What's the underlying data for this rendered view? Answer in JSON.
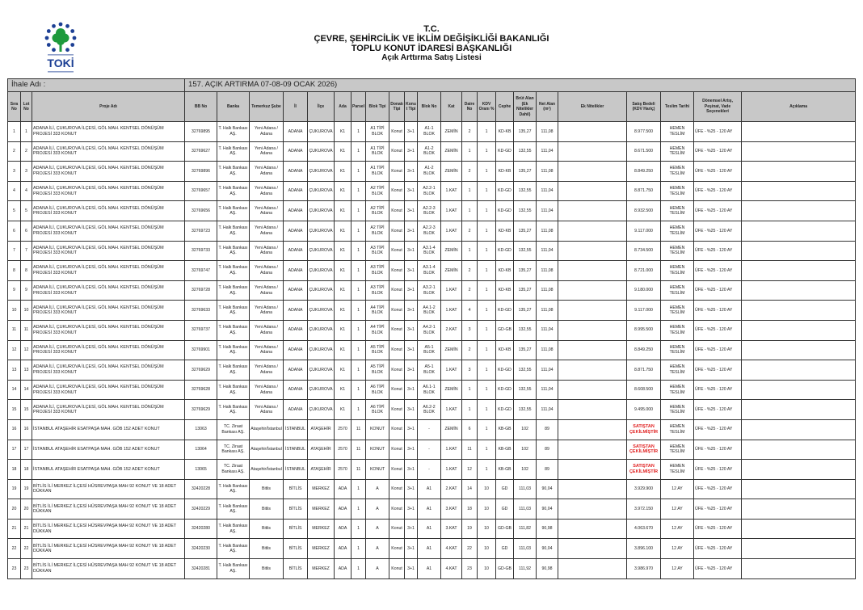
{
  "logo": {
    "text": "TOKİ",
    "colors": {
      "blue": "#1c3f94",
      "green": "#1e9a3c"
    }
  },
  "header": {
    "line1": "T.C.",
    "line2": "ÇEVRE, ŞEHİRCİLİK VE İKLİM DEĞİŞİKLİĞİ BAKANLIĞI",
    "line3": "TOPLU KONUT İDARESİ BAŞKANLIĞI",
    "line4": "Açık Arttırma Satış Listesi"
  },
  "ihale": {
    "label": "İhale Adı :",
    "value": "157. AÇIK ARTIRMA 07-08-09 OCAK 2026)"
  },
  "columns": [
    "Sıra No",
    "Lot No",
    "Proje Adı",
    "BB No",
    "Banka",
    "Temerkuz Şube",
    "İl",
    "İlçe",
    "Ada",
    "Parsel",
    "Blok Tipi",
    "Donatı Tipi",
    "Konut Tipi",
    "Blok No",
    "Kat",
    "Daire No",
    "KDV Oranı %",
    "Cephe",
    "Brüt Alan (Ek Nitelikler Dahil)",
    "Net Alan (m²)",
    "Ek Nitelikler",
    "Satış Bedeli (KDV Hariç)",
    "Teslim Tarihi",
    "Dönemsel Artış, Peşinat, Vade Seçenekleri",
    "Açıklama"
  ],
  "colors": {
    "header_bg": "#c8c8c8",
    "withdrawn": "#e02020"
  },
  "rows": [
    [
      "1",
      "1",
      "ADANA İLİ, ÇUKUROVA İLÇESİ, GÖL MAH. KENTSEL DÖNÜŞÜM PROJESİ 333 KONUT",
      "32769895",
      "T. Halk Bankası AŞ.",
      "Yeni Adana / Adana",
      "ADANA",
      "ÇUKUROVA",
      "K1",
      "1",
      "A1 TİPİ BLOK",
      "Konut",
      "3+1",
      "A1-1 BLOK",
      "ZEMİN",
      "2",
      "1",
      "KD-KB",
      "135,27",
      "111,08",
      "",
      "8.977.500",
      "HEMEN TESLİM",
      "ÜFE - %25 - 120 AY",
      ""
    ],
    [
      "2",
      "2",
      "ADANA İLİ, ÇUKUROVA İLÇESİ, GÖL MAH. KENTSEL DÖNÜŞÜM PROJESİ 333 KONUT",
      "32769627",
      "T. Halk Bankası AŞ.",
      "Yeni Adana / Adana",
      "ADANA",
      "ÇUKUROVA",
      "K1",
      "1",
      "A1 TİPİ BLOK",
      "Konut",
      "3+1",
      "A1-2 BLOK",
      "ZEMİN",
      "1",
      "1",
      "KD-GD",
      "132,55",
      "111,04",
      "",
      "8.671.500",
      "HEMEN TESLİM",
      "ÜFE - %25 - 120 AY",
      ""
    ],
    [
      "3",
      "3",
      "ADANA İLİ, ÇUKUROVA İLÇESİ, GÖL MAH. KENTSEL DÖNÜŞÜM PROJESİ 333 KONUT",
      "32769896",
      "T. Halk Bankası AŞ.",
      "Yeni Adana / Adana",
      "ADANA",
      "ÇUKUROVA",
      "K1",
      "1",
      "A1 TİPİ BLOK",
      "Konut",
      "3+1",
      "A1-2 BLOK",
      "ZEMİN",
      "2",
      "1",
      "KD-KB",
      "135,27",
      "111,08",
      "",
      "8.849.250",
      "HEMEN TESLİM",
      "ÜFE - %25 - 120 AY",
      ""
    ],
    [
      "4",
      "4",
      "ADANA İLİ, ÇUKUROVA İLÇESİ, GÖL MAH. KENTSEL DÖNÜŞÜM PROJESİ 333 KONUT",
      "32769657",
      "T. Halk Bankası AŞ.",
      "Yeni Adana / Adana",
      "ADANA",
      "ÇUKUROVA",
      "K1",
      "1",
      "A2 TİPİ BLOK",
      "Konut",
      "3+1",
      "A2.2-1 BLOK",
      "1.KAT",
      "1",
      "1",
      "KD-GD",
      "132,55",
      "111,04",
      "",
      "8.871.750",
      "HEMEN TESLİM",
      "ÜFE - %25 - 120 AY",
      ""
    ],
    [
      "5",
      "5",
      "ADANA İLİ, ÇUKUROVA İLÇESİ, GÖL MAH. KENTSEL DÖNÜŞÜM PROJESİ 333 KONUT",
      "32769656",
      "T. Halk Bankası AŞ.",
      "Yeni Adana / Adana",
      "ADANA",
      "ÇUKUROVA",
      "K1",
      "1",
      "A2 TİPİ BLOK",
      "Konut",
      "3+1",
      "A2.2-3 BLOK",
      "1.KAT",
      "1",
      "1",
      "KD-GD",
      "132,55",
      "111,04",
      "",
      "8.932.500",
      "HEMEN TESLİM",
      "ÜFE - %25 - 120 AY",
      ""
    ],
    [
      "6",
      "6",
      "ADANA İLİ, ÇUKUROVA İLÇESİ, GÖL MAH. KENTSEL DÖNÜŞÜM PROJESİ 333 KONUT",
      "32769723",
      "T. Halk Bankası AŞ.",
      "Yeni Adana / Adana",
      "ADANA",
      "ÇUKUROVA",
      "K1",
      "1",
      "A2 TİPİ BLOK",
      "Konut",
      "3+1",
      "A2.2-3 BLOK",
      "1.KAT",
      "2",
      "1",
      "KD-KB",
      "135,27",
      "111,08",
      "",
      "9.117.000",
      "HEMEN TESLİM",
      "ÜFE - %25 - 120 AY",
      ""
    ],
    [
      "7",
      "7",
      "ADANA İLİ, ÇUKUROVA İLÇESİ, GÖL MAH. KENTSEL DÖNÜŞÜM PROJESİ 333 KONUT",
      "32769733",
      "T. Halk Bankası AŞ.",
      "Yeni Adana / Adana",
      "ADANA",
      "ÇUKUROVA",
      "K1",
      "1",
      "A3 TİPİ BLOK",
      "Konut",
      "3+1",
      "A3.1-4 BLOK",
      "ZEMİN",
      "1",
      "1",
      "KD-GD",
      "132,55",
      "111,04",
      "",
      "8.734.500",
      "HEMEN TESLİM",
      "ÜFE - %25 - 120 AY",
      ""
    ],
    [
      "8",
      "8",
      "ADANA İLİ, ÇUKUROVA İLÇESİ, GÖL MAH. KENTSEL DÖNÜŞÜM PROJESİ 333 KONUT",
      "32769747",
      "T. Halk Bankası AŞ.",
      "Yeni Adana / Adana",
      "ADANA",
      "ÇUKUROVA",
      "K1",
      "1",
      "A3 TİPİ BLOK",
      "Konut",
      "3+1",
      "A3.1-4 BLOK",
      "ZEMİN",
      "2",
      "1",
      "KD-KB",
      "135,27",
      "111,08",
      "",
      "8.721.000",
      "HEMEN TESLİM",
      "ÜFE - %25 - 120 AY",
      ""
    ],
    [
      "9",
      "9",
      "ADANA İLİ, ÇUKUROVA İLÇESİ, GÖL MAH. KENTSEL DÖNÜŞÜM PROJESİ 333 KONUT",
      "32769728",
      "T. Halk Bankası AŞ.",
      "Yeni Adana / Adana",
      "ADANA",
      "ÇUKUROVA",
      "K1",
      "1",
      "A3 TİPİ BLOK",
      "Konut",
      "3+1",
      "A3.2-1 BLOK",
      "1.KAT",
      "2",
      "1",
      "KD-KB",
      "135,27",
      "111,08",
      "",
      "9.180.000",
      "HEMEN TESLİM",
      "ÜFE - %25 - 120 AY",
      ""
    ],
    [
      "10",
      "10",
      "ADANA İLİ, ÇUKUROVA İLÇESİ, GÖL MAH. KENTSEL DÖNÜŞÜM PROJESİ 333 KONUT",
      "32769633",
      "T. Halk Bankası AŞ.",
      "Yeni Adana / Adana",
      "ADANA",
      "ÇUKUROVA",
      "K1",
      "1",
      "A4 TİPİ BLOK",
      "Konut",
      "3+1",
      "A4.1-2 BLOK",
      "1.KAT",
      "4",
      "1",
      "KD-GD",
      "135,27",
      "111,08",
      "",
      "9.117.000",
      "HEMEN TESLİM",
      "ÜFE - %25 - 120 AY",
      ""
    ],
    [
      "11",
      "11",
      "ADANA İLİ, ÇUKUROVA İLÇESİ, GÖL MAH. KENTSEL DÖNÜŞÜM PROJESİ 333 KONUT",
      "32769737",
      "T. Halk Bankası AŞ.",
      "Yeni Adana / Adana",
      "ADANA",
      "ÇUKUROVA",
      "K1",
      "1",
      "A4 TİPİ BLOK",
      "Konut",
      "3+1",
      "A4.2-1 BLOK",
      "2.KAT",
      "3",
      "1",
      "GD-GB",
      "132,55",
      "111,04",
      "",
      "8.995.500",
      "HEMEN TESLİM",
      "ÜFE - %25 - 120 AY",
      ""
    ],
    [
      "12",
      "12",
      "ADANA İLİ, ÇUKUROVA İLÇESİ, GÖL MAH. KENTSEL DÖNÜŞÜM PROJESİ 333 KONUT",
      "32769901",
      "T. Halk Bankası AŞ.",
      "Yeni Adana / Adana",
      "ADANA",
      "ÇUKUROVA",
      "K1",
      "1",
      "A5 TİPİ BLOK",
      "Konut",
      "3+1",
      "A5-1 BLOK",
      "ZEMİN",
      "2",
      "1",
      "KD-KB",
      "135,27",
      "111,08",
      "",
      "8.849.250",
      "HEMEN TESLİM",
      "ÜFE - %25 - 120 AY",
      ""
    ],
    [
      "13",
      "13",
      "ADANA İLİ, ÇUKUROVA İLÇESİ, GÖL MAH. KENTSEL DÖNÜŞÜM PROJESİ 333 KONUT",
      "32769629",
      "T. Halk Bankası AŞ.",
      "Yeni Adana / Adana",
      "ADANA",
      "ÇUKUROVA",
      "K1",
      "1",
      "A5 TİPİ BLOK",
      "Konut",
      "3+1",
      "A5-1 BLOK",
      "1.KAT",
      "3",
      "1",
      "KD-GD",
      "132,55",
      "111,04",
      "",
      "8.871.750",
      "HEMEN TESLİM",
      "ÜFE - %25 - 120 AY",
      ""
    ],
    [
      "14",
      "14",
      "ADANA İLİ, ÇUKUROVA İLÇESİ, GÖL MAH. KENTSEL DÖNÜŞÜM PROJESİ 333 KONUT",
      "32769628",
      "T. Halk Bankası AŞ.",
      "Yeni Adana / Adana",
      "ADANA",
      "ÇUKUROVA",
      "K1",
      "1",
      "A6 TİPİ BLOK",
      "Konut",
      "3+1",
      "A6.1-1 BLOK",
      "ZEMİN",
      "1",
      "1",
      "KD-GD",
      "132,55",
      "111,04",
      "",
      "8.608.500",
      "HEMEN TESLİM",
      "ÜFE - %25 - 120 AY",
      ""
    ],
    [
      "15",
      "15",
      "ADANA İLİ, ÇUKUROVA İLÇESİ, GÖL MAH. KENTSEL DÖNÜŞÜM PROJESİ 333 KONUT",
      "32769629",
      "T. Halk Bankası AŞ.",
      "Yeni Adana / Adana",
      "ADANA",
      "ÇUKUROVA",
      "K1",
      "1",
      "A6 TİPİ BLOK",
      "Konut",
      "3+1",
      "A6.2-2 BLOK",
      "1.KAT",
      "1",
      "1",
      "KD-GD",
      "132,55",
      "111,04",
      "",
      "9.495.000",
      "HEMEN TESLİM",
      "ÜFE - %25 - 120 AY",
      ""
    ],
    [
      "16",
      "16",
      "İSTANBUL ATAŞEHİR  ESATPAŞA MAH. GÖB 152 ADET KONUT",
      "13063",
      "TC. Ziraat Bankası AŞ.",
      "Ataşehir/İstanbul",
      "İSTANBUL",
      "ATAŞEHİR",
      "2570",
      "11",
      "KONUT",
      "Konut",
      "3+1",
      "-",
      "ZEMİN",
      "6",
      "1",
      "KB-GB",
      "102",
      "89",
      "",
      "SATIŞTAN ÇEKİLMİŞTİR",
      "HEMEN TESLİM",
      "ÜFE - %25 - 120 AY",
      ""
    ],
    [
      "17",
      "17",
      "İSTANBUL ATAŞEHİR  ESATPAŞA MAH. GÖB 152 ADET KONUT",
      "13064",
      "TC. Ziraat Bankası AŞ.",
      "Ataşehir/İstanbul",
      "İSTANBUL",
      "ATAŞEHİR",
      "2570",
      "11",
      "KONUT",
      "Konut",
      "3+1",
      "-",
      "1.KAT",
      "11",
      "1",
      "KB-GB",
      "102",
      "89",
      "",
      "SATIŞTAN ÇEKİLMİŞTİR",
      "HEMEN TESLİM",
      "ÜFE - %25 - 120 AY",
      ""
    ],
    [
      "18",
      "18",
      "İSTANBUL ATAŞEHİR  ESATPAŞA MAH. GÖB 152 ADET KONUT",
      "13065",
      "TC. Ziraat Bankası AŞ.",
      "Ataşehir/İstanbul",
      "İSTANBUL",
      "ATAŞEHİR",
      "2570",
      "11",
      "KONUT",
      "Konut",
      "3+1",
      "-",
      "1.KAT",
      "12",
      "1",
      "KB-GB",
      "102",
      "89",
      "",
      "SATIŞTAN ÇEKİLMİŞTİR",
      "HEMEN TESLİM",
      "ÜFE - %25 - 120 AY",
      ""
    ],
    [
      "19",
      "19",
      "BİTLİS İLİ MERKEZ İLÇESİ HÜSREVPAŞA MAH 92 KONUT VE 18 ADET DÜKKAN",
      "32420228",
      "T. Halk Bankası AŞ.",
      "Bitlis",
      "BİTLİS",
      "MERKEZ",
      "ADA",
      "1",
      "A",
      "Konut",
      "3+1",
      "A1",
      "2.KAT",
      "14",
      "10",
      "GD",
      "111,03",
      "90,04",
      "",
      "3.929.900",
      "12 AY",
      "ÜFE - %25 - 120 AY",
      ""
    ],
    [
      "20",
      "20",
      "BİTLİS İLİ MERKEZ İLÇESİ HÜSREVPAŞA MAH 92 KONUT VE 18 ADET DÜKKAN",
      "32420229",
      "T. Halk Bankası AŞ.",
      "Bitlis",
      "BİTLİS",
      "MERKEZ",
      "ADA",
      "1",
      "A",
      "Konut",
      "3+1",
      "A1",
      "3.KAT",
      "18",
      "10",
      "GD",
      "111,03",
      "90,04",
      "",
      "3.972.150",
      "12 AY",
      "ÜFE - %25 - 120 AY",
      ""
    ],
    [
      "21",
      "21",
      "BİTLİS İLİ MERKEZ İLÇESİ HÜSREVPAŞA MAH 92 KONUT VE 18 ADET DÜKKAN",
      "32420280",
      "T. Halk Bankası AŞ.",
      "Bitlis",
      "BİTLİS",
      "MERKEZ",
      "ADA",
      "1",
      "A",
      "Konut",
      "3+1",
      "A1",
      "3.KAT",
      "19",
      "10",
      "GD-GB",
      "111,82",
      "90,98",
      "",
      "4.063.670",
      "12 AY",
      "ÜFE - %25 - 120 AY",
      ""
    ],
    [
      "22",
      "22",
      "BİTLİS İLİ MERKEZ İLÇESİ HÜSREVPAŞA MAH 92 KONUT VE 18 ADET DÜKKAN",
      "32420230",
      "T. Halk Bankası AŞ.",
      "Bitlis",
      "BİTLİS",
      "MERKEZ",
      "ADA",
      "1",
      "A",
      "Konut",
      "3+1",
      "A1",
      "4.KAT",
      "22",
      "10",
      "GD",
      "111,03",
      "90,04",
      "",
      "3.896.100",
      "12 AY",
      "ÜFE - %25 - 120 AY",
      ""
    ],
    [
      "23",
      "23",
      "BİTLİS İLİ MERKEZ İLÇESİ HÜSREVPAŞA MAH 92 KONUT VE 18 ADET DÜKKAN",
      "32420281",
      "T. Halk Bankası AŞ.",
      "Bitlis",
      "BİTLİS",
      "MERKEZ",
      "ADA",
      "1",
      "A",
      "Konut",
      "3+1",
      "A1",
      "4.KAT",
      "23",
      "10",
      "GD-GB",
      "111,92",
      "90,98",
      "",
      "3.986.970",
      "12 AY",
      "ÜFE - %25 - 120 AY",
      ""
    ]
  ]
}
